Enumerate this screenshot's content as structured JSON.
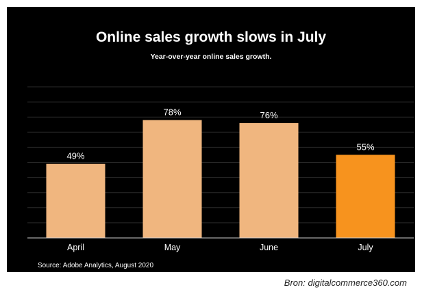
{
  "chart_data": {
    "type": "bar",
    "title": "Online sales growth slows in July",
    "subtitle": "Year-over-year online sales growth.",
    "categories": [
      "April",
      "May",
      "June",
      "July"
    ],
    "values": [
      49,
      78,
      76,
      55
    ],
    "data_labels": [
      "49%",
      "78%",
      "76%",
      "55%"
    ],
    "xlabel": "",
    "ylabel": "",
    "ylim": [
      0,
      100
    ],
    "grid": true,
    "colors": [
      "#f0b67f",
      "#f0b67f",
      "#f0b67f",
      "#f7931e"
    ],
    "source": "Source: Adobe Analytics, August 2020"
  },
  "credit": "Bron: digitalcommerce360.com",
  "colors": {
    "background": "#000000",
    "gridline": "#2a2a2a",
    "axis": "#cfcfcf",
    "text": "#ffffff"
  }
}
